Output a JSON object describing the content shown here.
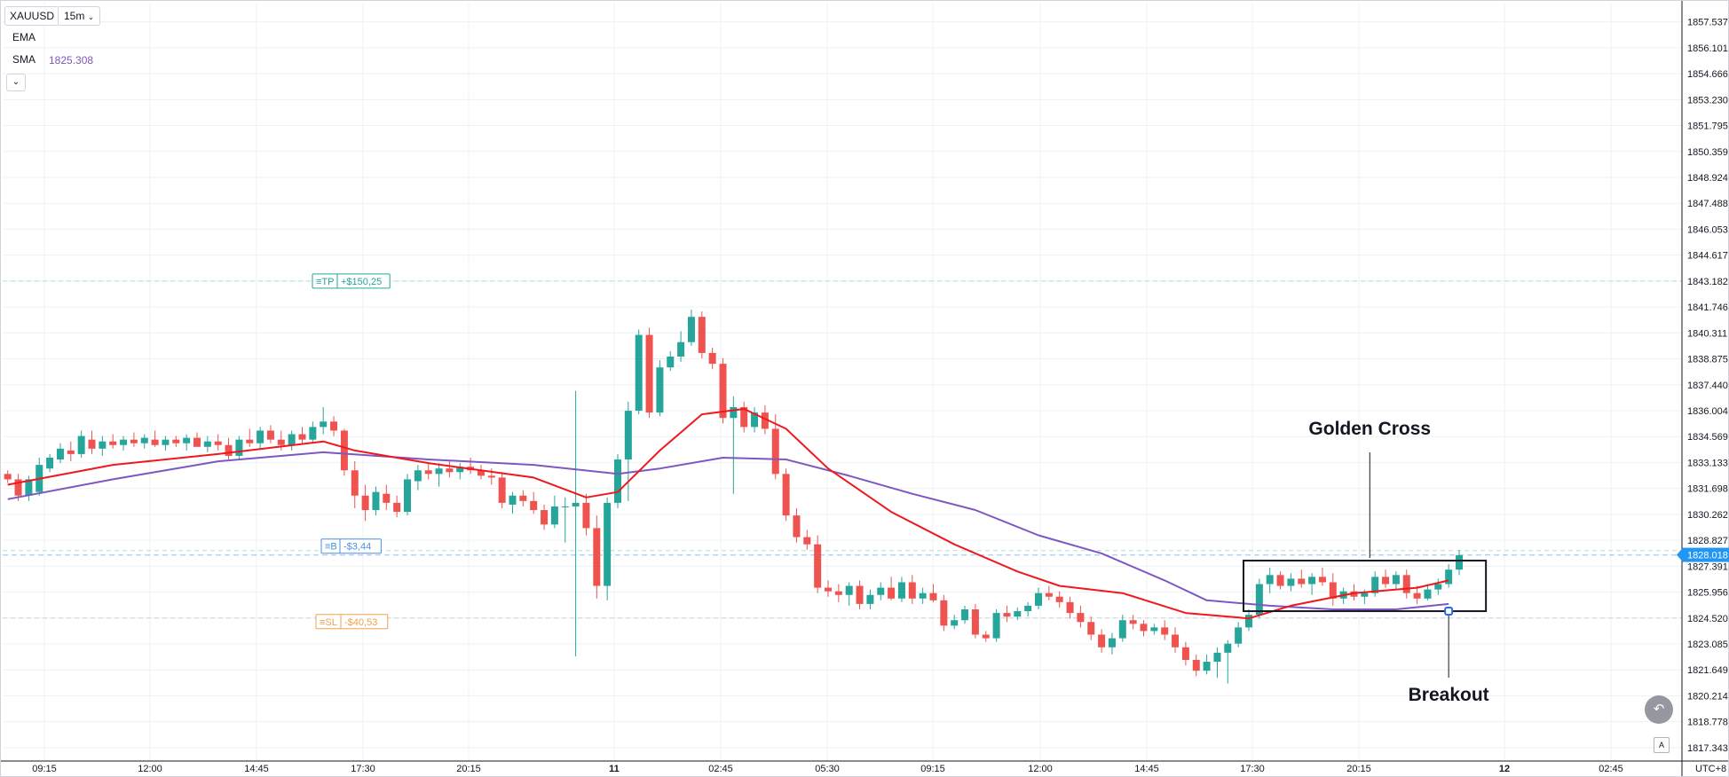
{
  "toolbar": {
    "symbol": "XAUUSD",
    "timeframe": "15m",
    "timeframe_chevron": "chevron-down-icon"
  },
  "indicators": [
    {
      "name": "EMA",
      "value": ""
    },
    {
      "name": "SMA",
      "value": "1825.308",
      "color": "#7e57c2"
    }
  ],
  "legend_collapse_icon": "chevron-down-icon",
  "scroll_button_icon": "scroll-to-realtime-icon",
  "auto_scale_icon": "auto-scale-icon",
  "colors": {
    "up": "#26a69a",
    "down": "#ef5350",
    "ema": "#f0171d",
    "sma": "#7e57c2",
    "tp": "#26a69a",
    "sl": "#f0a04b",
    "entry": "#4a90e2",
    "grid": "#eef0f3"
  },
  "orders": {
    "tp": {
      "tag": "TP",
      "pnl": "+$150,25",
      "price": 1843.18
    },
    "entry": {
      "tag": "B",
      "pnl": "-$3,44",
      "price": 1828.01
    },
    "sl": {
      "tag": "SL",
      "pnl": "-$40,53",
      "price": 1824.52
    }
  },
  "annotations": {
    "golden_cross": "Golden Cross",
    "breakout": "Breakout"
  },
  "chart_data": {
    "type": "candlestick",
    "symbol": "XAUUSD",
    "interval": "15m",
    "y_axis": {
      "ticks": [
        "1857.537",
        "1856.101",
        "1854.666",
        "1853.230",
        "1851.795",
        "1850.359",
        "1848.924",
        "1847.488",
        "1846.053",
        "1844.617",
        "1843.182",
        "1841.746",
        "1840.311",
        "1838.875",
        "1837.440",
        "1836.004",
        "1834.569",
        "1833.133",
        "1831.698",
        "1830.262",
        "1828.827",
        "1827.391",
        "1825.956",
        "1824.520",
        "1823.085",
        "1821.649",
        "1820.214",
        "1818.778",
        "1817.343"
      ],
      "range": [
        1816.6,
        1858.6
      ],
      "last_price_label": "1828.018",
      "last_price": 1828.018
    },
    "x_axis": {
      "ticks": [
        "09:15",
        "12:00",
        "14:45",
        "17:30",
        "20:15",
        "11",
        "02:45",
        "05:30",
        "09:15",
        "12:00",
        "14:45",
        "17:30",
        "20:15",
        "12",
        "02:45"
      ],
      "bold_ticks": [
        "11",
        "12"
      ],
      "timezone": "UTC+8"
    },
    "candles": [
      [
        1832.5,
        1832.7,
        1832.0,
        1832.2
      ],
      [
        1832.2,
        1832.5,
        1831.0,
        1831.3
      ],
      [
        1831.3,
        1832.4,
        1831.0,
        1832.2
      ],
      [
        1831.5,
        1833.4,
        1831.3,
        1833.0
      ],
      [
        1832.8,
        1833.6,
        1832.6,
        1833.4
      ],
      [
        1833.3,
        1834.2,
        1833.1,
        1833.9
      ],
      [
        1833.8,
        1834.3,
        1833.2,
        1833.6
      ],
      [
        1833.6,
        1834.9,
        1833.4,
        1834.6
      ],
      [
        1834.4,
        1834.9,
        1833.6,
        1833.9
      ],
      [
        1833.9,
        1834.6,
        1833.5,
        1834.3
      ],
      [
        1834.3,
        1834.7,
        1833.9,
        1834.1
      ],
      [
        1834.1,
        1834.6,
        1833.8,
        1834.4
      ],
      [
        1834.4,
        1834.8,
        1834.0,
        1834.2
      ],
      [
        1834.2,
        1834.7,
        1833.9,
        1834.5
      ],
      [
        1834.4,
        1834.9,
        1834.0,
        1834.1
      ],
      [
        1834.1,
        1834.6,
        1833.8,
        1834.4
      ],
      [
        1834.4,
        1834.6,
        1834.0,
        1834.2
      ],
      [
        1834.2,
        1834.7,
        1833.8,
        1834.5
      ],
      [
        1834.5,
        1834.8,
        1834.0,
        1834.0
      ],
      [
        1834.0,
        1834.6,
        1833.7,
        1834.3
      ],
      [
        1834.3,
        1834.7,
        1833.8,
        1834.1
      ],
      [
        1834.1,
        1834.5,
        1833.3,
        1833.5
      ],
      [
        1833.5,
        1834.6,
        1833.3,
        1834.4
      ],
      [
        1834.4,
        1835.0,
        1834.0,
        1834.2
      ],
      [
        1834.2,
        1835.1,
        1833.9,
        1834.9
      ],
      [
        1834.9,
        1835.2,
        1834.2,
        1834.4
      ],
      [
        1834.4,
        1834.9,
        1833.8,
        1834.1
      ],
      [
        1834.1,
        1834.9,
        1833.8,
        1834.7
      ],
      [
        1834.7,
        1835.1,
        1834.2,
        1834.4
      ],
      [
        1834.4,
        1835.4,
        1834.2,
        1835.1
      ],
      [
        1835.1,
        1836.2,
        1834.7,
        1835.4
      ],
      [
        1835.4,
        1835.7,
        1834.6,
        1834.9
      ],
      [
        1834.9,
        1835.0,
        1832.4,
        1832.7
      ],
      [
        1832.7,
        1833.2,
        1830.6,
        1831.3
      ],
      [
        1831.3,
        1831.9,
        1829.9,
        1830.5
      ],
      [
        1830.5,
        1831.8,
        1830.2,
        1831.5
      ],
      [
        1831.4,
        1831.9,
        1830.5,
        1830.9
      ],
      [
        1830.9,
        1831.3,
        1830.1,
        1830.4
      ],
      [
        1830.4,
        1832.5,
        1830.2,
        1832.2
      ],
      [
        1832.1,
        1833.0,
        1831.6,
        1832.7
      ],
      [
        1832.7,
        1833.1,
        1832.2,
        1832.5
      ],
      [
        1832.5,
        1833.1,
        1831.8,
        1832.8
      ],
      [
        1832.8,
        1833.2,
        1832.3,
        1832.6
      ],
      [
        1832.6,
        1833.1,
        1832.2,
        1832.9
      ],
      [
        1832.9,
        1833.4,
        1832.5,
        1832.7
      ],
      [
        1832.7,
        1833.0,
        1832.2,
        1832.4
      ],
      [
        1832.4,
        1832.8,
        1831.9,
        1832.3
      ],
      [
        1832.3,
        1832.6,
        1830.6,
        1830.9
      ],
      [
        1830.8,
        1831.5,
        1830.3,
        1831.3
      ],
      [
        1831.3,
        1831.6,
        1830.7,
        1831.0
      ],
      [
        1831.0,
        1831.5,
        1830.3,
        1830.5
      ],
      [
        1830.5,
        1830.8,
        1829.4,
        1829.7
      ],
      [
        1829.7,
        1831.3,
        1829.5,
        1830.7
      ],
      [
        1830.7,
        1831.2,
        1828.7,
        1830.7
      ],
      [
        1830.7,
        1837.1,
        1822.4,
        1830.9
      ],
      [
        1830.9,
        1831.4,
        1829.1,
        1829.5
      ],
      [
        1829.5,
        1830.2,
        1825.6,
        1826.3
      ],
      [
        1826.3,
        1831.2,
        1825.5,
        1830.9
      ],
      [
        1830.9,
        1833.6,
        1830.6,
        1833.3
      ],
      [
        1833.3,
        1836.5,
        1831.0,
        1836.0
      ],
      [
        1836.0,
        1840.5,
        1835.8,
        1840.2
      ],
      [
        1840.2,
        1840.6,
        1835.6,
        1835.9
      ],
      [
        1835.9,
        1838.8,
        1835.7,
        1838.4
      ],
      [
        1838.4,
        1839.3,
        1838.2,
        1839.0
      ],
      [
        1839.0,
        1840.4,
        1838.7,
        1839.8
      ],
      [
        1839.8,
        1841.6,
        1839.6,
        1841.2
      ],
      [
        1841.2,
        1841.5,
        1838.9,
        1839.2
      ],
      [
        1839.2,
        1839.5,
        1838.3,
        1838.6
      ],
      [
        1838.6,
        1838.9,
        1835.3,
        1835.6
      ],
      [
        1835.6,
        1836.8,
        1831.4,
        1836.2
      ],
      [
        1836.2,
        1836.5,
        1834.8,
        1835.1
      ],
      [
        1835.1,
        1836.2,
        1834.8,
        1835.9
      ],
      [
        1835.9,
        1836.3,
        1834.7,
        1835.0
      ],
      [
        1835.0,
        1835.8,
        1832.2,
        1832.5
      ],
      [
        1832.5,
        1832.8,
        1829.9,
        1830.2
      ],
      [
        1830.2,
        1830.6,
        1828.7,
        1829.0
      ],
      [
        1829.0,
        1829.4,
        1828.3,
        1828.6
      ],
      [
        1828.6,
        1829.1,
        1825.9,
        1826.2
      ],
      [
        1826.2,
        1826.6,
        1825.7,
        1826.0
      ],
      [
        1826.0,
        1826.4,
        1825.4,
        1825.8
      ],
      [
        1825.8,
        1826.5,
        1825.2,
        1826.3
      ],
      [
        1826.3,
        1826.6,
        1825.0,
        1825.3
      ],
      [
        1825.3,
        1826.1,
        1825.0,
        1825.8
      ],
      [
        1825.8,
        1826.5,
        1825.5,
        1826.2
      ],
      [
        1826.2,
        1826.8,
        1825.5,
        1825.6
      ],
      [
        1825.6,
        1826.8,
        1825.4,
        1826.5
      ],
      [
        1826.5,
        1826.9,
        1825.3,
        1825.6
      ],
      [
        1825.6,
        1826.2,
        1825.3,
        1825.9
      ],
      [
        1825.9,
        1826.4,
        1825.4,
        1825.5
      ],
      [
        1825.5,
        1825.8,
        1823.8,
        1824.1
      ],
      [
        1824.1,
        1824.7,
        1823.9,
        1824.4
      ],
      [
        1824.4,
        1825.2,
        1824.2,
        1825.0
      ],
      [
        1825.0,
        1825.3,
        1823.4,
        1823.6
      ],
      [
        1823.6,
        1823.8,
        1823.2,
        1823.4
      ],
      [
        1823.4,
        1825.0,
        1823.2,
        1824.8
      ],
      [
        1824.8,
        1825.2,
        1824.3,
        1824.6
      ],
      [
        1824.6,
        1825.1,
        1824.4,
        1824.9
      ],
      [
        1824.9,
        1825.4,
        1824.6,
        1825.2
      ],
      [
        1825.2,
        1826.2,
        1825.0,
        1825.9
      ],
      [
        1825.9,
        1826.3,
        1825.5,
        1825.7
      ],
      [
        1825.7,
        1826.0,
        1825.1,
        1825.4
      ],
      [
        1825.4,
        1825.7,
        1824.5,
        1824.8
      ],
      [
        1824.8,
        1825.2,
        1824.0,
        1824.3
      ],
      [
        1824.3,
        1824.6,
        1823.3,
        1823.6
      ],
      [
        1823.6,
        1823.9,
        1822.6,
        1822.9
      ],
      [
        1822.9,
        1823.7,
        1822.5,
        1823.4
      ],
      [
        1823.4,
        1824.7,
        1823.2,
        1824.4
      ],
      [
        1824.4,
        1824.7,
        1823.9,
        1824.2
      ],
      [
        1824.2,
        1824.4,
        1823.5,
        1823.8
      ],
      [
        1823.8,
        1824.2,
        1823.6,
        1824.0
      ],
      [
        1824.0,
        1824.4,
        1823.3,
        1823.6
      ],
      [
        1823.6,
        1824.0,
        1822.6,
        1822.9
      ],
      [
        1822.9,
        1823.2,
        1821.9,
        1822.2
      ],
      [
        1822.2,
        1822.5,
        1821.3,
        1821.6
      ],
      [
        1821.6,
        1822.5,
        1821.4,
        1822.1
      ],
      [
        1822.1,
        1822.9,
        1821.2,
        1822.6
      ],
      [
        1822.6,
        1823.3,
        1820.9,
        1823.1
      ],
      [
        1823.1,
        1824.3,
        1822.9,
        1824.0
      ],
      [
        1824.0,
        1825.0,
        1823.8,
        1824.7
      ],
      [
        1824.7,
        1826.7,
        1824.5,
        1826.4
      ],
      [
        1826.4,
        1827.3,
        1825.9,
        1826.9
      ],
      [
        1826.9,
        1827.1,
        1826.1,
        1826.3
      ],
      [
        1826.3,
        1827.0,
        1826.0,
        1826.7
      ],
      [
        1826.7,
        1827.2,
        1826.2,
        1826.4
      ],
      [
        1826.4,
        1827.0,
        1825.8,
        1826.8
      ],
      [
        1826.8,
        1827.3,
        1826.3,
        1826.5
      ],
      [
        1826.5,
        1827.0,
        1825.2,
        1825.6
      ],
      [
        1825.6,
        1826.2,
        1825.3,
        1826.0
      ],
      [
        1826.0,
        1826.4,
        1825.5,
        1825.7
      ],
      [
        1825.7,
        1826.1,
        1825.3,
        1825.9
      ],
      [
        1825.9,
        1827.1,
        1825.7,
        1826.8
      ],
      [
        1826.8,
        1827.2,
        1826.2,
        1826.4
      ],
      [
        1826.4,
        1827.1,
        1826.1,
        1826.9
      ],
      [
        1826.9,
        1827.2,
        1825.6,
        1825.9
      ],
      [
        1825.9,
        1826.3,
        1825.3,
        1825.6
      ],
      [
        1825.6,
        1826.4,
        1825.5,
        1826.1
      ],
      [
        1826.1,
        1826.7,
        1825.8,
        1826.4
      ],
      [
        1826.4,
        1827.5,
        1826.2,
        1827.2
      ],
      [
        1827.2,
        1828.3,
        1826.9,
        1828.0
      ]
    ],
    "ema_series": [
      [
        0,
        1831.9
      ],
      [
        10,
        1833.0
      ],
      [
        20,
        1833.6
      ],
      [
        30,
        1834.3
      ],
      [
        33,
        1833.8
      ],
      [
        40,
        1833.1
      ],
      [
        50,
        1832.3
      ],
      [
        55,
        1831.2
      ],
      [
        58,
        1831.5
      ],
      [
        62,
        1833.8
      ],
      [
        66,
        1835.8
      ],
      [
        70,
        1836.1
      ],
      [
        74,
        1835.0
      ],
      [
        78,
        1832.8
      ],
      [
        84,
        1830.4
      ],
      [
        90,
        1828.6
      ],
      [
        96,
        1827.1
      ],
      [
        100,
        1826.3
      ],
      [
        106,
        1825.9
      ],
      [
        112,
        1824.8
      ],
      [
        118,
        1824.5
      ],
      [
        122,
        1825.2
      ],
      [
        128,
        1825.9
      ],
      [
        134,
        1826.2
      ],
      [
        137,
        1826.6
      ]
    ],
    "sma_series": [
      [
        0,
        1831.1
      ],
      [
        10,
        1832.2
      ],
      [
        20,
        1833.2
      ],
      [
        30,
        1833.7
      ],
      [
        40,
        1833.3
      ],
      [
        50,
        1833.0
      ],
      [
        58,
        1832.5
      ],
      [
        62,
        1832.8
      ],
      [
        68,
        1833.4
      ],
      [
        74,
        1833.3
      ],
      [
        80,
        1832.4
      ],
      [
        86,
        1831.4
      ],
      [
        92,
        1830.5
      ],
      [
        98,
        1829.1
      ],
      [
        104,
        1828.1
      ],
      [
        110,
        1826.6
      ],
      [
        114,
        1825.5
      ],
      [
        120,
        1825.2
      ],
      [
        126,
        1825.0
      ],
      [
        132,
        1825.0
      ],
      [
        137,
        1825.3
      ]
    ]
  }
}
